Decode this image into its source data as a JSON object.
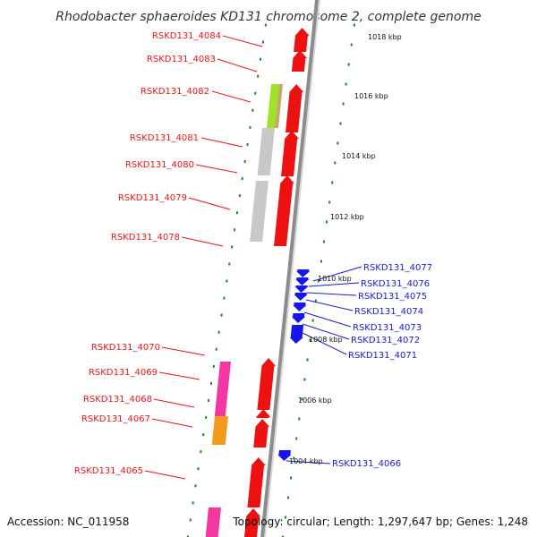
{
  "title": "Rhodobacter sphaeroides KD131 chromosome 2, complete genome",
  "footer": {
    "accession": "Accession: NC_011958",
    "summary": "Topology: circular; Length: 1,297,647 bp; Genes: 1,248"
  },
  "colors": {
    "forward_gene": "#ee1111",
    "reverse_gene": "#1515ee",
    "tick": "#1c8a1c",
    "backbone": "#8c8c8c",
    "label_red": "#e8141a",
    "label_blue": "#1a1ad2",
    "cog_green": "#9ee32a",
    "cog_tan": "#c8a66e",
    "cog_grey": "#c8c8c8",
    "cog_pink": "#f238a0",
    "cog_orange": "#f39a1a"
  },
  "kbp_ticks": [
    "1018 kbp",
    "1016 kbp",
    "1014 kbp",
    "1012 kbp",
    "1010 kbp",
    "1008 kbp",
    "1006 kbp",
    "1004 kbp"
  ],
  "left_genes": [
    "RSKD131_4084",
    "RSKD131_4083",
    "RSKD131_4082",
    "RSKD131_4081",
    "RSKD131_4080",
    "RSKD131_4079",
    "RSKD131_4078",
    "RSKD131_4070",
    "RSKD131_4069",
    "RSKD131_4068",
    "RSKD131_4067",
    "RSKD131_4065"
  ],
  "right_genes": [
    "RSKD131_4077",
    "RSKD131_4076",
    "RSKD131_4075",
    "RSKD131_4074",
    "RSKD131_4073",
    "RSKD131_4072",
    "RSKD131_4071",
    "RSKD131_4066"
  ]
}
